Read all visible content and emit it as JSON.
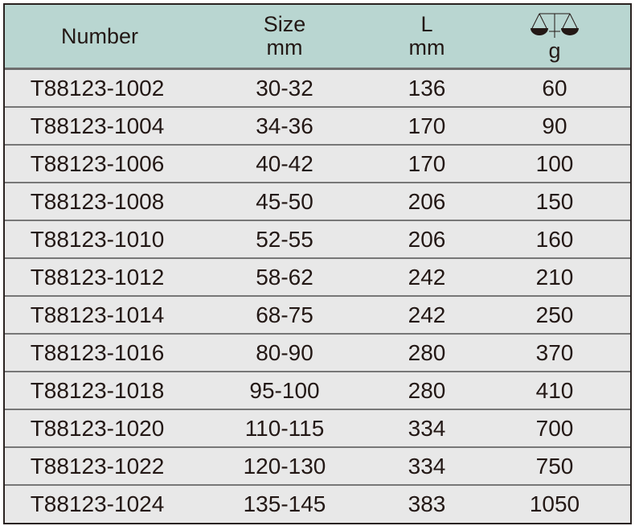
{
  "header": {
    "number": "Number",
    "size": "Size",
    "size_unit": "mm",
    "length": "L",
    "length_unit": "mm",
    "weight_icon": "balance-scale-icon",
    "weight_unit": "g"
  },
  "colors": {
    "header_bg": "#b9d6d1",
    "body_bg": "#e8e8e8"
  },
  "rows": [
    {
      "number": "T88123-1002",
      "size": "30-32",
      "length": "136",
      "weight": "60"
    },
    {
      "number": "T88123-1004",
      "size": "34-36",
      "length": "170",
      "weight": "90"
    },
    {
      "number": "T88123-1006",
      "size": "40-42",
      "length": "170",
      "weight": "100"
    },
    {
      "number": "T88123-1008",
      "size": "45-50",
      "length": "206",
      "weight": "150"
    },
    {
      "number": "T88123-1010",
      "size": "52-55",
      "length": "206",
      "weight": "160"
    },
    {
      "number": "T88123-1012",
      "size": "58-62",
      "length": "242",
      "weight": "210"
    },
    {
      "number": "T88123-1014",
      "size": "68-75",
      "length": "242",
      "weight": "250"
    },
    {
      "number": "T88123-1016",
      "size": "80-90",
      "length": "280",
      "weight": "370"
    },
    {
      "number": "T88123-1018",
      "size": "95-100",
      "length": "280",
      "weight": "410"
    },
    {
      "number": "T88123-1020",
      "size": "110-115",
      "length": "334",
      "weight": "700"
    },
    {
      "number": "T88123-1022",
      "size": "120-130",
      "length": "334",
      "weight": "750"
    },
    {
      "number": "T88123-1024",
      "size": "135-145",
      "length": "383",
      "weight": "1050"
    }
  ]
}
